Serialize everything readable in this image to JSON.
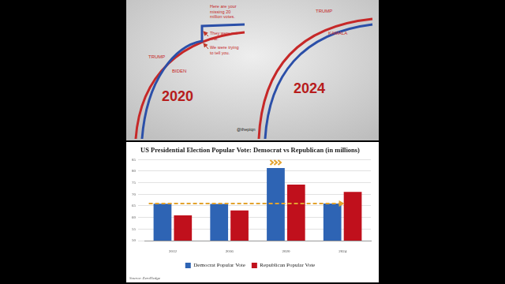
{
  "image": {
    "panels": [
      {
        "year": "2020",
        "labels": [
          "TRUMP",
          "BIDEN"
        ],
        "annotations": [
          [
            "Here are your",
            "missing 20",
            "million votes."
          ],
          [
            "They were not",
            "real."
          ],
          [
            "We were trying",
            "to tell you."
          ]
        ]
      },
      {
        "year": "2024",
        "labels": [
          "TRUMP",
          "KAMALA"
        ],
        "annotations": []
      }
    ],
    "credit": "@thepiqn"
  },
  "chart_data": {
    "type": "bar",
    "title": "US Presidential Election Popular Vote: Democrat vs Republican (in millions)",
    "categories": [
      "2012",
      "2016",
      "2020",
      "2024"
    ],
    "series": [
      {
        "name": "Democrat Popular Vote",
        "color": "#2e64b4",
        "values": [
          65.9,
          65.8,
          81.3,
          66.0
        ]
      },
      {
        "name": "Republican Popular Vote",
        "color": "#c0101c",
        "values": [
          60.9,
          63.0,
          74.2,
          71.0
        ]
      }
    ],
    "ylim": [
      50,
      85
    ],
    "yticks": [
      50,
      55,
      60,
      65,
      70,
      75,
      80,
      85
    ],
    "grid": true,
    "legend": "bottom",
    "reference_line": {
      "value": 66.0,
      "color": "#e3a32f",
      "line_style": "dashed"
    },
    "source": "Source: ZeroHedge"
  }
}
